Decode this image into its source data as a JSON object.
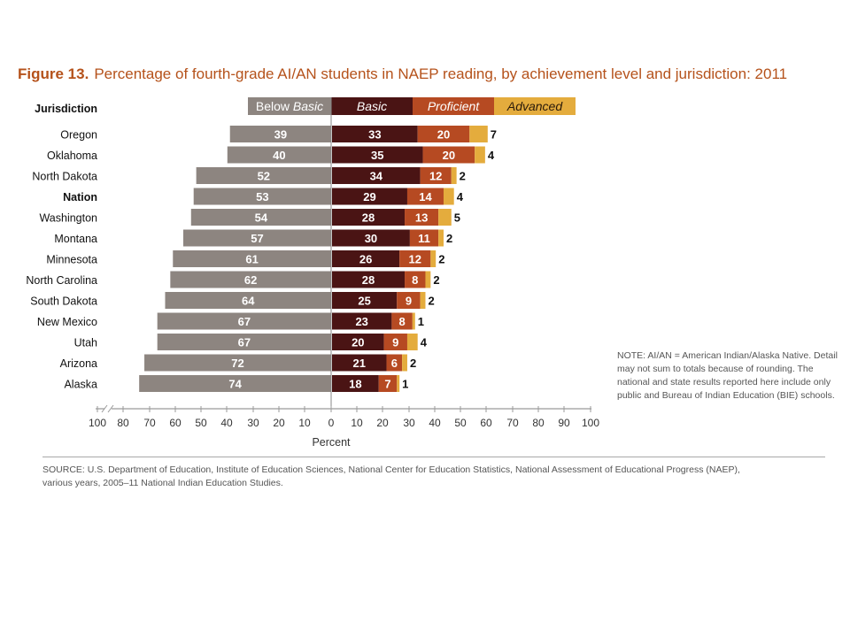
{
  "figure": {
    "number": "Figure 13.",
    "title": "Percentage of fourth-grade AI/AN students in NAEP reading, by achievement level and jurisdiction: 2011"
  },
  "note": "NOTE: AI/AN = American Indian/Alaska Native. Detail may not sum to totals because of rounding. The national and state results reported here include only public and Bureau of Indian Education (BIE) schools.",
  "source": "SOURCE: U.S. Department of Education, Institute of Education Sciences, National Center for Education Statistics, National Assessment of Educational Progress (NAEP), various years, 2005–11 National Indian Education Studies.",
  "colors": {
    "below_basic": "#8d8580",
    "basic": "#4a1414",
    "proficient": "#b64a22",
    "advanced": "#e4ac3d"
  },
  "chart_data": {
    "type": "bar",
    "orientation": "horizontal",
    "stacked": "diverging",
    "row_header": "Jurisdiction",
    "categories": [
      "Oregon",
      "Oklahoma",
      "North Dakota",
      "Nation",
      "Washington",
      "Montana",
      "Minnesota",
      "North Carolina",
      "South Dakota",
      "New Mexico",
      "Utah",
      "Arizona",
      "Alaska"
    ],
    "highlight_category": "Nation",
    "series": [
      {
        "name": "Below Basic",
        "direction": "left",
        "values": [
          39,
          40,
          52,
          53,
          54,
          57,
          61,
          62,
          64,
          67,
          67,
          72,
          74
        ]
      },
      {
        "name": "Basic",
        "direction": "right",
        "values": [
          33,
          35,
          34,
          29,
          28,
          30,
          26,
          28,
          25,
          23,
          20,
          21,
          18
        ]
      },
      {
        "name": "Proficient",
        "direction": "right",
        "values": [
          20,
          20,
          12,
          14,
          13,
          11,
          12,
          8,
          9,
          8,
          9,
          6,
          7
        ]
      },
      {
        "name": "Advanced",
        "direction": "right",
        "values": [
          7,
          4,
          2,
          4,
          5,
          2,
          2,
          2,
          2,
          1,
          4,
          2,
          1
        ]
      }
    ],
    "xlabel": "Percent",
    "xticks": [
      "100",
      "80",
      "70",
      "60",
      "50",
      "40",
      "30",
      "20",
      "10",
      "0",
      "10",
      "20",
      "30",
      "40",
      "50",
      "60",
      "70",
      "80",
      "90",
      "100"
    ],
    "xlim": [
      -100,
      100
    ],
    "axis_break": "left end",
    "legend_position": "top"
  }
}
